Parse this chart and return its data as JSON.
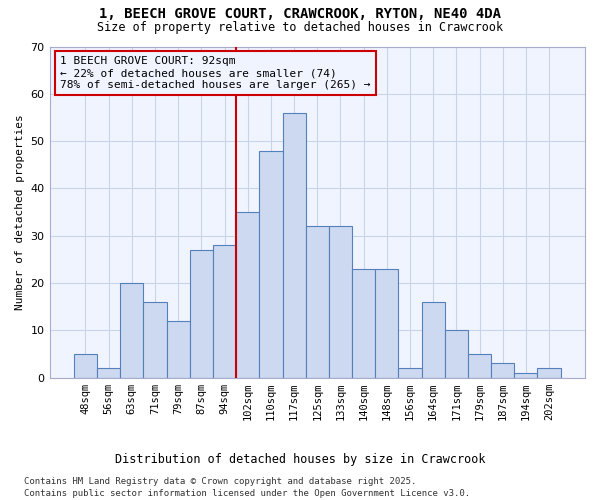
{
  "title_line1": "1, BEECH GROVE COURT, CRAWCROOK, RYTON, NE40 4DA",
  "title_line2": "Size of property relative to detached houses in Crawcrook",
  "xlabel": "Distribution of detached houses by size in Crawcrook",
  "ylabel": "Number of detached properties",
  "bar_labels": [
    "48sqm",
    "56sqm",
    "63sqm",
    "71sqm",
    "79sqm",
    "87sqm",
    "94sqm",
    "102sqm",
    "110sqm",
    "117sqm",
    "125sqm",
    "133sqm",
    "140sqm",
    "148sqm",
    "156sqm",
    "164sqm",
    "171sqm",
    "179sqm",
    "187sqm",
    "194sqm",
    "202sqm"
  ],
  "bar_values": [
    5,
    2,
    20,
    16,
    12,
    27,
    28,
    35,
    48,
    56,
    32,
    32,
    23,
    23,
    2,
    16,
    10,
    5,
    3,
    1,
    2
  ],
  "bar_color": "#ccd9f0",
  "bar_edge_color": "#5580bb",
  "annotation_text": "1 BEECH GROVE COURT: 92sqm\n← 22% of detached houses are smaller (74)\n78% of semi-detached houses are larger (265) →",
  "vline_x_index": 6,
  "vline_color": "#cc0000",
  "annotation_box_color": "#cc0000",
  "background_color": "#ffffff",
  "plot_bg_color": "#f0f4ff",
  "grid_color": "#c8d4e8",
  "ylim": [
    0,
    70
  ],
  "yticks": [
    0,
    10,
    20,
    30,
    40,
    50,
    60,
    70
  ],
  "footer_line1": "Contains HM Land Registry data © Crown copyright and database right 2025.",
  "footer_line2": "Contains public sector information licensed under the Open Government Licence v3.0."
}
